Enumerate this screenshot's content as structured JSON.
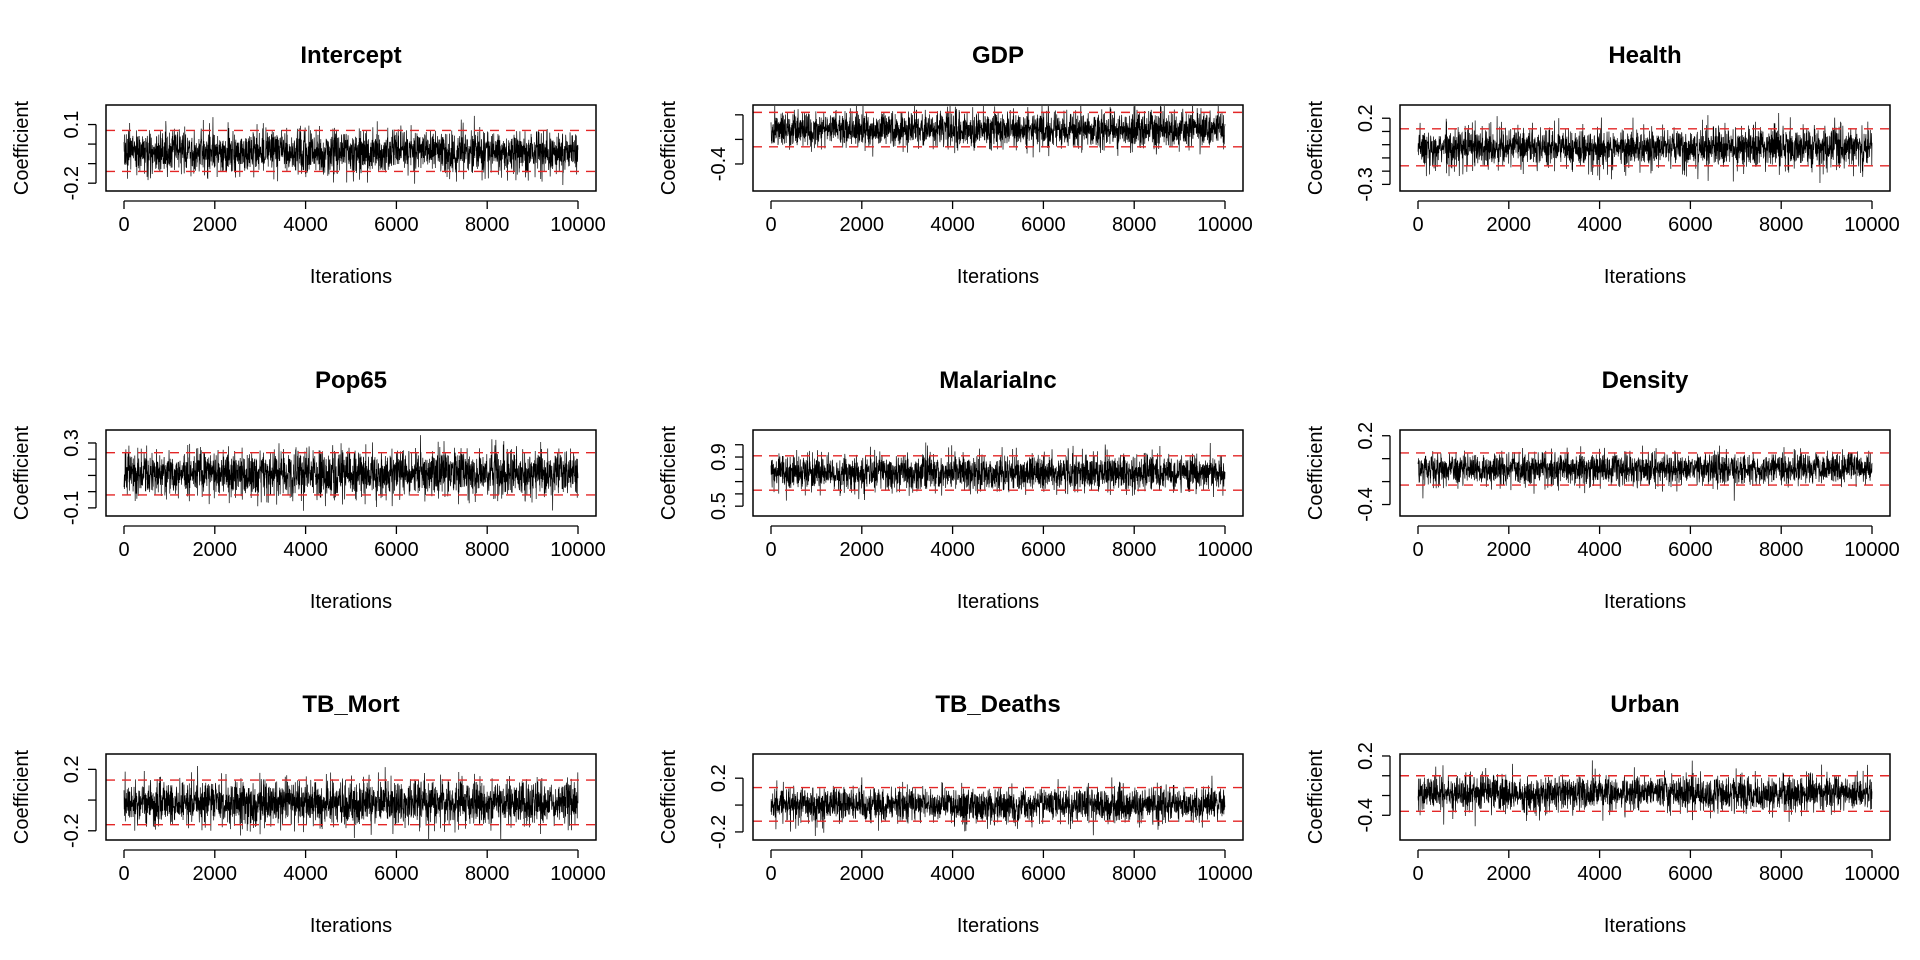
{
  "figure": {
    "layout": "3x3 grid of MCMC trace plots",
    "colors": {
      "trace": "#000000",
      "ci_line": "#e32626",
      "axis": "#000000",
      "background": "#ffffff"
    }
  },
  "chart_data": [
    {
      "type": "line",
      "title": "Intercept",
      "xlabel": "Iterations",
      "ylabel": "Coefficient",
      "x_range": [
        0,
        10000
      ],
      "x_ticks": [
        "0",
        "2000",
        "4000",
        "6000",
        "8000",
        "10000"
      ],
      "ylim": [
        -0.24,
        0.2
      ],
      "y_ticks": [
        {
          "value": 0.1,
          "label": "0.1"
        },
        {
          "value": -0.2,
          "label": "-0.2"
        }
      ],
      "y_minor_ticks": [
        0.0,
        -0.1
      ],
      "series": [
        {
          "name": "trace",
          "n_iterations": 10000,
          "mean": -0.04,
          "sd": 0.055
        }
      ],
      "ci_lines": [
        0.07,
        -0.14
      ]
    },
    {
      "type": "line",
      "title": "GDP",
      "xlabel": "Iterations",
      "ylabel": "Coefficient",
      "x_range": [
        0,
        10000
      ],
      "x_ticks": [
        "0",
        "2000",
        "4000",
        "6000",
        "8000",
        "10000"
      ],
      "ylim": [
        -0.62,
        0.08
      ],
      "y_ticks": [
        {
          "value": -0.4,
          "label": "-0.4"
        }
      ],
      "y_minor_ticks": [
        -0.2,
        0.0
      ],
      "series": [
        {
          "name": "trace",
          "n_iterations": 10000,
          "mean": -0.12,
          "sd": 0.075
        }
      ],
      "ci_lines": [
        0.02,
        -0.26
      ]
    },
    {
      "type": "line",
      "title": "Health",
      "xlabel": "Iterations",
      "ylabel": "Coefficient",
      "x_range": [
        0,
        10000
      ],
      "x_ticks": [
        "0",
        "2000",
        "4000",
        "6000",
        "8000",
        "10000"
      ],
      "ylim": [
        -0.35,
        0.3
      ],
      "y_ticks": [
        {
          "value": 0.2,
          "label": "0.2"
        },
        {
          "value": -0.3,
          "label": "-0.3"
        }
      ],
      "y_minor_ticks": [
        0.1,
        0.0,
        -0.1,
        -0.2
      ],
      "series": [
        {
          "name": "trace",
          "n_iterations": 10000,
          "mean": -0.02,
          "sd": 0.075
        }
      ],
      "ci_lines": [
        0.12,
        -0.16
      ]
    },
    {
      "type": "line",
      "title": "Pop65",
      "xlabel": "Iterations",
      "ylabel": "Coefficient",
      "x_range": [
        0,
        10000
      ],
      "x_ticks": [
        "0",
        "2000",
        "4000",
        "6000",
        "8000",
        "10000"
      ],
      "ylim": [
        -0.15,
        0.38
      ],
      "y_ticks": [
        {
          "value": 0.3,
          "label": "0.3"
        },
        {
          "value": -0.1,
          "label": "-0.1"
        }
      ],
      "y_minor_ticks": [
        0.2,
        0.1,
        0.0
      ],
      "series": [
        {
          "name": "trace",
          "n_iterations": 10000,
          "mean": 0.11,
          "sd": 0.07
        }
      ],
      "ci_lines": [
        0.24,
        -0.02
      ]
    },
    {
      "type": "line",
      "title": "MalariaInc",
      "xlabel": "Iterations",
      "ylabel": "Coefficient",
      "x_range": [
        0,
        10000
      ],
      "x_ticks": [
        "0",
        "2000",
        "4000",
        "6000",
        "8000",
        "10000"
      ],
      "ylim": [
        0.42,
        1.12
      ],
      "y_ticks": [
        {
          "value": 0.9,
          "label": "0.9"
        },
        {
          "value": 0.5,
          "label": "0.5"
        }
      ],
      "y_minor_ticks": [
        1.0,
        0.8,
        0.7,
        0.6
      ],
      "series": [
        {
          "name": "trace",
          "n_iterations": 10000,
          "mean": 0.77,
          "sd": 0.075
        }
      ],
      "ci_lines": [
        0.91,
        0.63
      ]
    },
    {
      "type": "line",
      "title": "Density",
      "xlabel": "Iterations",
      "ylabel": "Coefficient",
      "x_range": [
        0,
        10000
      ],
      "x_ticks": [
        "0",
        "2000",
        "4000",
        "6000",
        "8000",
        "10000"
      ],
      "ylim": [
        -0.5,
        0.25
      ],
      "y_ticks": [
        {
          "value": 0.2,
          "label": "0.2"
        },
        {
          "value": -0.4,
          "label": "-0.4"
        }
      ],
      "y_minor_ticks": [
        0.0,
        -0.2
      ],
      "series": [
        {
          "name": "trace",
          "n_iterations": 10000,
          "mean": -0.09,
          "sd": 0.07
        }
      ],
      "ci_lines": [
        0.05,
        -0.23
      ]
    },
    {
      "type": "line",
      "title": "TB_Mort",
      "xlabel": "Iterations",
      "ylabel": "Coefficient",
      "x_range": [
        0,
        10000
      ],
      "x_ticks": [
        "0",
        "2000",
        "4000",
        "6000",
        "8000",
        "10000"
      ],
      "ylim": [
        -0.26,
        0.3
      ],
      "y_ticks": [
        {
          "value": 0.2,
          "label": "0.2"
        },
        {
          "value": -0.2,
          "label": "-0.2"
        }
      ],
      "y_minor_ticks": [
        0.0
      ],
      "series": [
        {
          "name": "trace",
          "n_iterations": 10000,
          "mean": -0.02,
          "sd": 0.075
        }
      ],
      "ci_lines": [
        0.13,
        -0.16
      ]
    },
    {
      "type": "line",
      "title": "TB_Deaths",
      "xlabel": "Iterations",
      "ylabel": "Coefficient",
      "x_range": [
        0,
        10000
      ],
      "x_ticks": [
        "0",
        "2000",
        "4000",
        "6000",
        "8000",
        "10000"
      ],
      "ylim": [
        -0.26,
        0.38
      ],
      "y_ticks": [
        {
          "value": 0.2,
          "label": "0.2"
        },
        {
          "value": -0.2,
          "label": "-0.2"
        }
      ],
      "y_minor_ticks": [
        0.0
      ],
      "series": [
        {
          "name": "trace",
          "n_iterations": 10000,
          "mean": 0.0,
          "sd": 0.065
        }
      ],
      "ci_lines": [
        0.13,
        -0.12
      ]
    },
    {
      "type": "line",
      "title": "Urban",
      "xlabel": "Iterations",
      "ylabel": "Coefficient",
      "x_range": [
        0,
        10000
      ],
      "x_ticks": [
        "0",
        "2000",
        "4000",
        "6000",
        "8000",
        "10000"
      ],
      "ylim": [
        -0.65,
        0.22
      ],
      "y_ticks": [
        {
          "value": 0.2,
          "label": "0.2"
        },
        {
          "value": -0.4,
          "label": "-0.4"
        }
      ],
      "y_minor_ticks": [
        0.0,
        -0.2
      ],
      "series": [
        {
          "name": "trace",
          "n_iterations": 10000,
          "mean": -0.18,
          "sd": 0.09
        }
      ],
      "ci_lines": [
        0.0,
        -0.36
      ]
    }
  ]
}
